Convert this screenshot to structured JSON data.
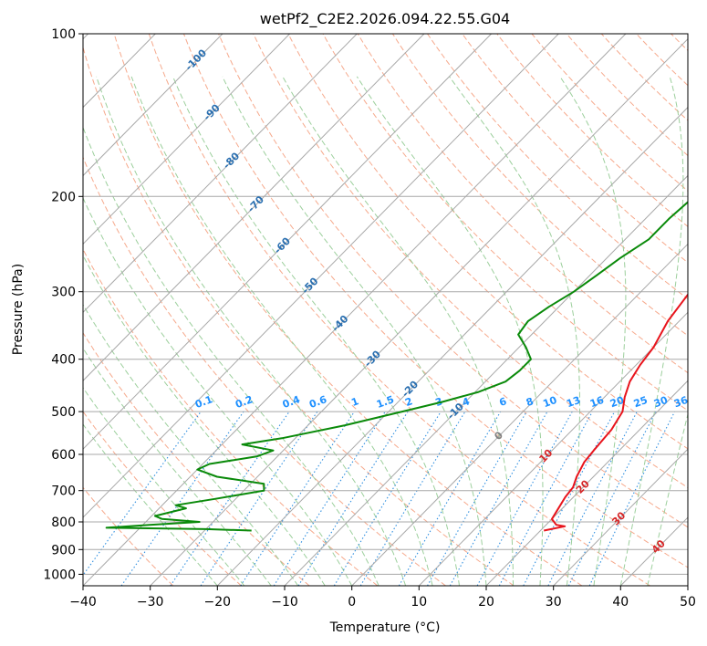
{
  "chart_data": {
    "type": "line",
    "title": "wetPf2_C2E2.2026.094.22.55.G04",
    "xlabel": "Temperature (°C)",
    "ylabel": "Pressure (hPa)",
    "xlim": [
      -40,
      50
    ],
    "ylim": [
      1050,
      100
    ],
    "x_ticks": [
      -40,
      -30,
      -20,
      -10,
      0,
      10,
      20,
      30,
      40,
      50
    ],
    "y_ticks": [
      100,
      200,
      300,
      400,
      500,
      600,
      700,
      800,
      900,
      1000
    ],
    "x_tick_labels": [
      "−40",
      "−30",
      "−20",
      "−10",
      "0",
      "10",
      "20",
      "30",
      "40",
      "50"
    ],
    "y_tick_labels": [
      "100",
      "200",
      "300",
      "400",
      "500",
      "600",
      "700",
      "800",
      "900",
      "1000"
    ],
    "colors": {
      "temperature": "#e8141c",
      "dewpoint": "#0a8a0a",
      "isotherm": "#a8a8a8",
      "dry_adiabat": "#f6a98c",
      "moist_adiabat": "#9ccf9c",
      "mixing_ratio": "#2f8fe0",
      "frame": "#000000"
    },
    "isotherm_labels": [
      {
        "T": -100,
        "p": 112,
        "label": "-100"
      },
      {
        "T": -90,
        "p": 140,
        "label": "-90"
      },
      {
        "T": -80,
        "p": 172,
        "label": "-80"
      },
      {
        "T": -70,
        "p": 207,
        "label": "-70"
      },
      {
        "T": -60,
        "p": 247,
        "label": "-60"
      },
      {
        "T": -50,
        "p": 293,
        "label": "-50"
      },
      {
        "T": -40,
        "p": 344,
        "label": "-40"
      },
      {
        "T": -30,
        "p": 400,
        "label": "-30"
      },
      {
        "T": -20,
        "p": 455,
        "label": "-20"
      },
      {
        "T": -10,
        "p": 500,
        "label": "-10"
      }
    ],
    "temp_labels": [
      {
        "T": 0,
        "p": 555,
        "label": "0"
      },
      {
        "T": 10,
        "p": 605,
        "label": "10"
      },
      {
        "T": 20,
        "p": 690,
        "label": "20"
      },
      {
        "T": 30,
        "p": 790,
        "label": "30"
      },
      {
        "T": 40,
        "p": 890,
        "label": "40"
      }
    ],
    "mixing_ratio_labels": [
      "0.1",
      "0.2",
      "0.4",
      "0.6",
      "1",
      "1.5",
      "2",
      "3",
      "4",
      "6",
      "8",
      "10",
      "13",
      "16",
      "20",
      "25",
      "30",
      "36"
    ],
    "mixing_ratio_label_x": [
      -22,
      -16,
      -9,
      -5,
      0.5,
      5,
      8.5,
      13,
      17,
      22.5,
      26.5,
      29.5,
      33,
      36.5,
      39.5,
      43,
      46,
      49
    ],
    "series": [
      {
        "name": "Temperature",
        "points": [
          [
            18.7,
            100
          ],
          [
            17.2,
            115
          ],
          [
            12.8,
            135
          ],
          [
            11.8,
            150
          ],
          [
            12.7,
            163
          ],
          [
            11.6,
            170
          ],
          [
            9.5,
            177
          ],
          [
            7.3,
            183
          ],
          [
            6.7,
            190
          ],
          [
            6.9,
            200
          ],
          [
            7.2,
            215
          ],
          [
            6.8,
            240
          ],
          [
            7.0,
            270
          ],
          [
            7.3,
            300
          ],
          [
            8.3,
            340
          ],
          [
            10.0,
            380
          ],
          [
            10.6,
            410
          ],
          [
            11.5,
            440
          ],
          [
            13.0,
            470
          ],
          [
            14.8,
            500
          ],
          [
            15.8,
            540
          ],
          [
            16.2,
            590
          ],
          [
            16.5,
            620
          ],
          [
            17.5,
            660
          ],
          [
            18.5,
            690
          ],
          [
            18.8,
            720
          ],
          [
            19.5,
            760
          ],
          [
            20.0,
            790
          ],
          [
            21.5,
            810
          ],
          [
            23.0,
            815
          ],
          [
            20.5,
            830
          ]
        ]
      },
      {
        "name": "Dewpoint",
        "points": [
          [
            -1.5,
            100
          ],
          [
            -4.5,
            110
          ],
          [
            -8.5,
            120
          ],
          [
            -8.5,
            132
          ],
          [
            -5.5,
            140
          ],
          [
            -6.0,
            150
          ],
          [
            -8.0,
            160
          ],
          [
            -7.5,
            170
          ],
          [
            -5.5,
            185
          ],
          [
            -6.0,
            200
          ],
          [
            -6.5,
            220
          ],
          [
            -6.5,
            240
          ],
          [
            -8.0,
            260
          ],
          [
            -9.0,
            280
          ],
          [
            -10.0,
            300
          ],
          [
            -11.5,
            320
          ],
          [
            -12.5,
            340
          ],
          [
            -12.0,
            360
          ],
          [
            -9.0,
            380
          ],
          [
            -6.5,
            400
          ],
          [
            -6.5,
            420
          ],
          [
            -7.0,
            440
          ],
          [
            -9.5,
            460
          ],
          [
            -13.5,
            480
          ],
          [
            -18.0,
            500
          ],
          [
            -24.5,
            530
          ],
          [
            -32.0,
            560
          ],
          [
            -37.0,
            575
          ],
          [
            -31.5,
            590
          ],
          [
            -33.0,
            605
          ],
          [
            -39.0,
            625
          ],
          [
            -40.0,
            640
          ],
          [
            -36.0,
            660
          ],
          [
            -28.0,
            680
          ],
          [
            -27.0,
            700
          ],
          [
            -33.0,
            725
          ],
          [
            -38.0,
            745
          ],
          [
            -36.0,
            755
          ],
          [
            -39.5,
            780
          ],
          [
            -38.0,
            790
          ],
          [
            -32.0,
            800
          ],
          [
            -39.0,
            810
          ],
          [
            -45.0,
            820
          ],
          [
            -30.0,
            825
          ],
          [
            -23.0,
            830
          ]
        ]
      }
    ]
  }
}
